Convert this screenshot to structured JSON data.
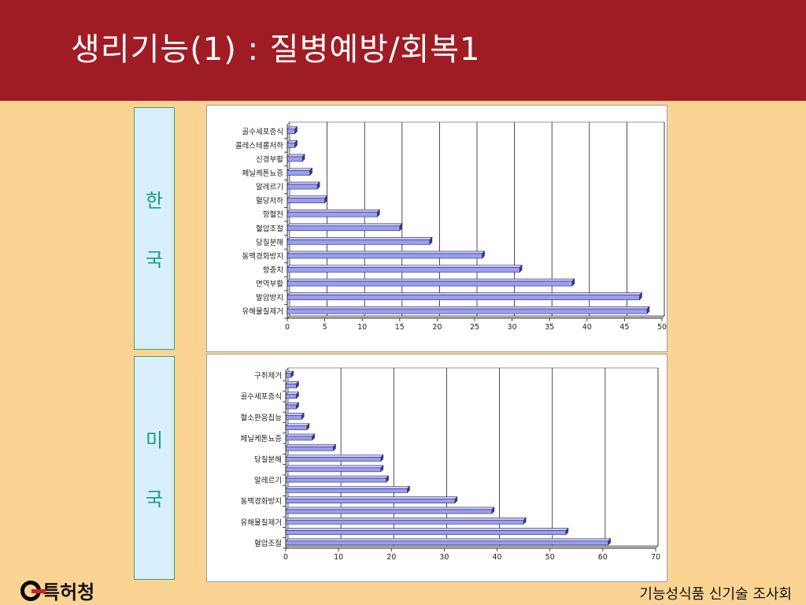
{
  "slide": {
    "title": "생리기능(1) : 질병예방/회복1",
    "footer": "기능성식품 신기술 조사회",
    "logo_text": "특허청"
  },
  "labels": {
    "korea": [
      "한",
      "국"
    ],
    "usa": [
      "미",
      "국"
    ]
  },
  "colors": {
    "header": "#a01c24",
    "background": "#fbd494",
    "bar": "#9a9ef0",
    "bar_edge": "#2a2a6a"
  },
  "chart_data": [
    {
      "type": "bar",
      "orientation": "horizontal",
      "categories": [
        "유해물질제거",
        "발암방지",
        "면역부활",
        "항충치",
        "동맥경화방지",
        "당질분해",
        "혈압조절",
        "항혈전",
        "혈당저하",
        "알레르기",
        "페닐케톤뇨증",
        "신경부활",
        "콜레스테롤저하",
        "골수세포증식"
      ],
      "values": [
        48,
        47,
        38,
        31,
        26,
        19,
        15,
        12,
        5,
        4,
        3,
        2,
        1,
        1
      ],
      "xticks": [
        "0",
        "5",
        "10",
        "15",
        "20",
        "25",
        "30",
        "35",
        "40",
        "45",
        "50"
      ],
      "xlim": [
        0,
        50
      ],
      "grid": true
    },
    {
      "type": "bar",
      "orientation": "horizontal",
      "categories": [
        "혈압조절",
        "",
        "유해물질제거",
        "",
        "동맥경화방지",
        "",
        "알레르기",
        "",
        "당질분해",
        "",
        "페닐케톤뇨증",
        "",
        "혈소판응집능",
        "",
        "골수세포증식",
        "",
        "구취제거"
      ],
      "values": [
        61,
        53,
        45,
        39,
        32,
        23,
        19,
        18,
        18,
        9,
        5,
        4,
        3,
        2,
        2,
        2,
        1
      ],
      "xticks": [
        "0",
        "10",
        "20",
        "30",
        "40",
        "50",
        "60",
        "70"
      ],
      "xlim": [
        0,
        70
      ],
      "grid": true
    }
  ]
}
